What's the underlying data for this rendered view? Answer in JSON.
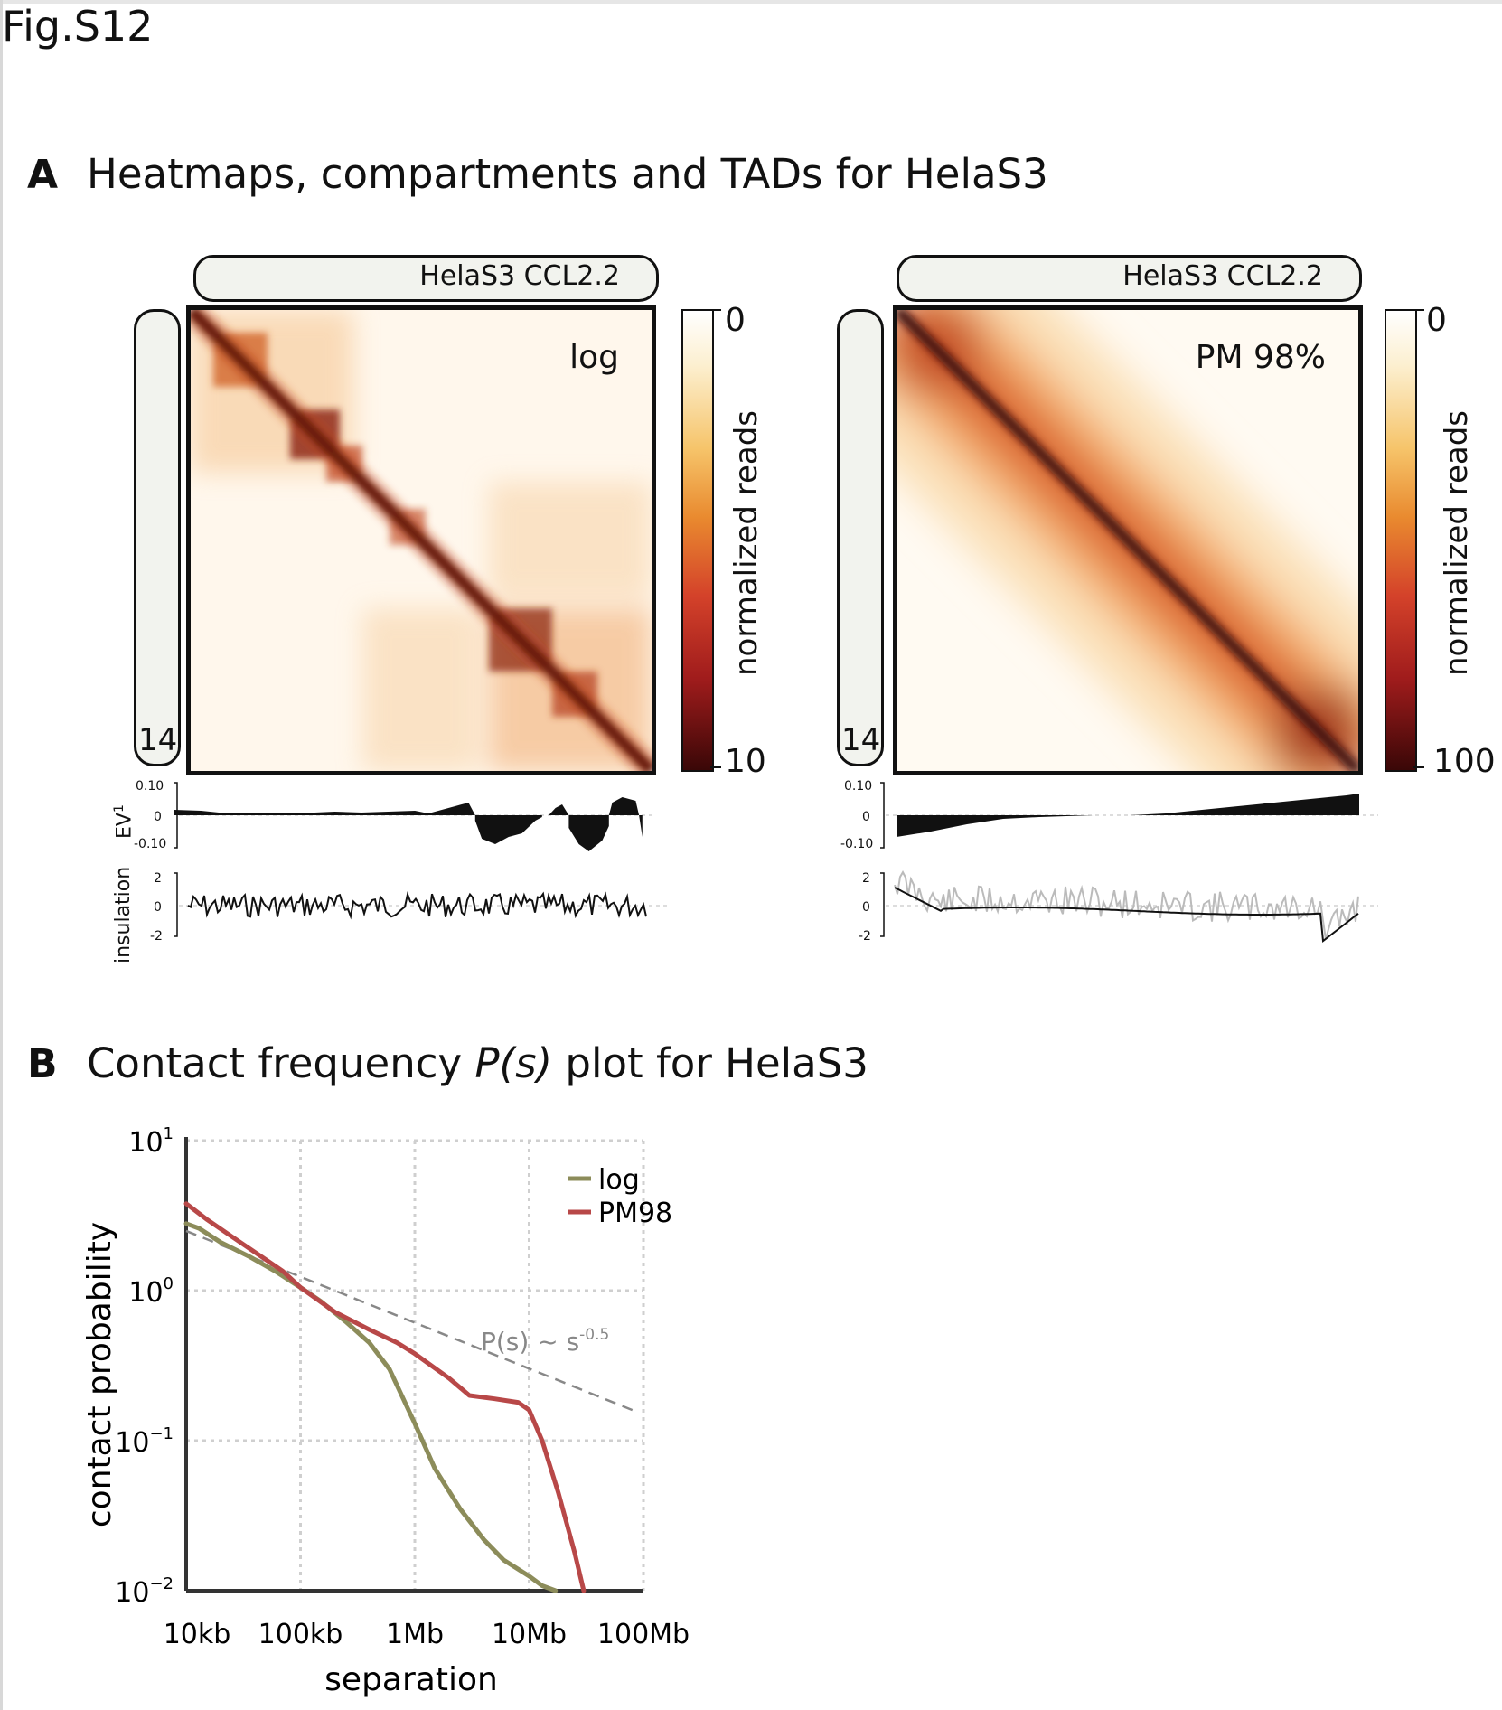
{
  "figure_label": "Fig.S12",
  "panel_a": {
    "letter": "A",
    "title": "Heatmaps, compartments and TADs for HelaS3",
    "maps": [
      {
        "sample_label": "HelaS3 CCL2.2",
        "chromosome": "14",
        "scale_label": "log",
        "colorbar_min": "0",
        "colorbar_max": "10",
        "colorbar_title": "normalized reads",
        "ev_ticks": [
          "0.10",
          "0",
          "-0.10"
        ],
        "insulation_ticks": [
          "2",
          "0",
          "-2"
        ]
      },
      {
        "sample_label": "HelaS3 CCL2.2",
        "chromosome": "14",
        "scale_label": "PM 98%",
        "colorbar_min": "0",
        "colorbar_max": "100",
        "colorbar_title": "normalized reads",
        "ev_ticks": [
          "0.10",
          "0",
          "-0.10"
        ],
        "insulation_ticks": [
          "2",
          "0",
          "-2"
        ]
      }
    ],
    "ev_label": "EV",
    "ev_superscript": "1",
    "insulation_label": "insulation"
  },
  "panel_b": {
    "letter": "B",
    "title_pre": "Contact frequency ",
    "title_italic": "P(s)",
    "title_post": " plot for HelaS3",
    "annotation_base": "P(s) ~ s",
    "annotation_exp": "-0.5"
  },
  "chart_data": {
    "type": "line",
    "title": "",
    "xlabel": "separation",
    "ylabel": "contact probability",
    "x_scale": "log",
    "y_scale": "log",
    "xlim": [
      10000,
      100000000
    ],
    "ylim": [
      0.01,
      10
    ],
    "x_ticks": [
      {
        "value": 10000,
        "label": "10kb"
      },
      {
        "value": 100000,
        "label": "100kb"
      },
      {
        "value": 1000000,
        "label": "1Mb"
      },
      {
        "value": 10000000,
        "label": "10Mb"
      },
      {
        "value": 100000000,
        "label": "100Mb"
      }
    ],
    "y_ticks": [
      {
        "value": 10,
        "base": "10",
        "exp": "1"
      },
      {
        "value": 1,
        "base": "10",
        "exp": "0"
      },
      {
        "value": 0.1,
        "base": "10",
        "exp": "−1"
      },
      {
        "value": 0.01,
        "base": "10",
        "exp": "−2"
      }
    ],
    "grid": true,
    "legend_position": "top-right",
    "series": [
      {
        "name": "log",
        "color": "#8c8c5a",
        "x": [
          10000,
          13000,
          20000,
          35000,
          60000,
          100000,
          150000,
          250000,
          400000,
          600000,
          1000000,
          1500000,
          2500000,
          4000000,
          6000000,
          10000000,
          13000000,
          17000000
        ],
        "y": [
          2.8,
          2.6,
          2.1,
          1.7,
          1.35,
          1.05,
          0.85,
          0.62,
          0.45,
          0.3,
          0.13,
          0.065,
          0.035,
          0.022,
          0.016,
          0.0125,
          0.0108,
          0.01
        ]
      },
      {
        "name": "PM98",
        "color": "#b84848",
        "x": [
          10000,
          15000,
          25000,
          40000,
          70000,
          100000,
          200000,
          400000,
          700000,
          1000000,
          2000000,
          3000000,
          5000000,
          8000000,
          10000000,
          13000000,
          18000000,
          25000000,
          30000000
        ],
        "y": [
          3.8,
          3.0,
          2.3,
          1.8,
          1.35,
          1.05,
          0.72,
          0.55,
          0.45,
          0.38,
          0.26,
          0.2,
          0.19,
          0.18,
          0.16,
          0.1,
          0.045,
          0.018,
          0.01
        ]
      }
    ],
    "reference_line": {
      "x": [
        10000,
        80000000
      ],
      "y": [
        2.5,
        0.16
      ],
      "style": "dashed",
      "color": "#888888"
    }
  }
}
